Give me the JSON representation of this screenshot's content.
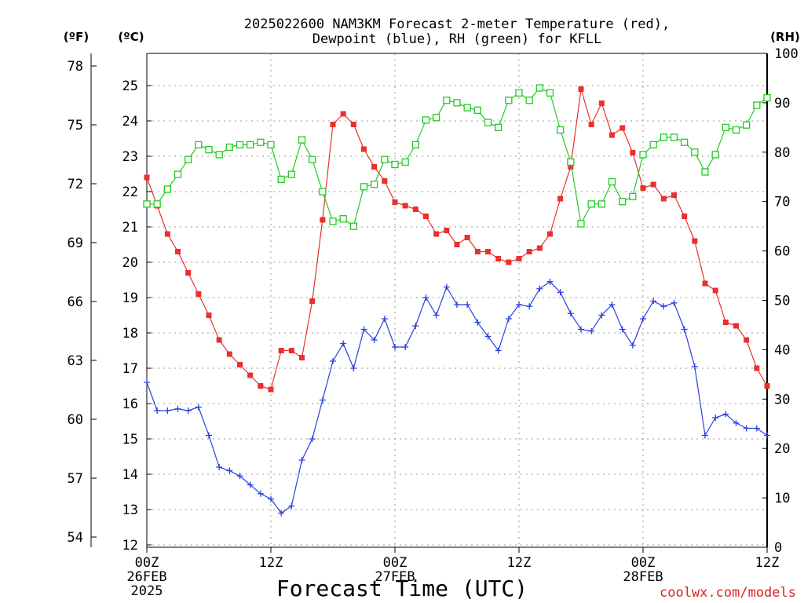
{
  "chart_data": {
    "type": "line",
    "title_line1": "2025022600 NAM3KM Forecast 2-meter Temperature (red),",
    "title_line2": "Dewpoint (blue), RH (green) for KFLL",
    "xlabel": "Forecast Time (UTC)",
    "credit": "coolwx.com/models",
    "left_axis_f_label": "(ºF)",
    "left_axis_c_label": "(ºC)",
    "right_axis_label": "(RH)",
    "x_hours_range": [
      0,
      60
    ],
    "x_ticks": [
      {
        "hour": 0,
        "label": "00Z",
        "sub1": "26FEB",
        "sub2": "2025"
      },
      {
        "hour": 12,
        "label": "12Z",
        "sub1": "",
        "sub2": ""
      },
      {
        "hour": 24,
        "label": "00Z",
        "sub1": "27FEB",
        "sub2": ""
      },
      {
        "hour": 36,
        "label": "12Z",
        "sub1": "",
        "sub2": ""
      },
      {
        "hour": 48,
        "label": "00Z",
        "sub1": "28FEB",
        "sub2": ""
      },
      {
        "hour": 60,
        "label": "12Z",
        "sub1": "",
        "sub2": ""
      }
    ],
    "y_celsius_range": [
      12,
      25.85
    ],
    "y_celsius_ticks": [
      "12",
      "13",
      "14",
      "15",
      "16",
      "17",
      "18",
      "19",
      "20",
      "21",
      "22",
      "23",
      "24",
      "25"
    ],
    "y_fahrenheit_ticks": [
      "54",
      "57",
      "60",
      "63",
      "66",
      "69",
      "72",
      "75",
      "78"
    ],
    "y_rh_range": [
      0,
      100
    ],
    "y_rh_ticks": [
      "0",
      "10",
      "20",
      "30",
      "40",
      "50",
      "60",
      "70",
      "80",
      "90",
      "100"
    ],
    "grid": true,
    "series": [
      {
        "name": "Temperature",
        "color": "#e8302e",
        "marker": "filled-square",
        "axis": "celsius",
        "values": [
          22.4,
          21.6,
          20.8,
          20.3,
          19.7,
          19.1,
          18.5,
          17.8,
          17.4,
          17.1,
          16.8,
          16.5,
          16.4,
          17.5,
          17.5,
          17.3,
          18.9,
          21.2,
          23.9,
          24.2,
          23.9,
          23.2,
          22.7,
          22.3,
          21.7,
          21.6,
          21.5,
          21.3,
          20.8,
          20.9,
          20.5,
          20.7,
          20.3,
          20.3,
          20.1,
          20.0,
          20.1,
          20.3,
          20.4,
          20.8,
          21.8,
          22.7,
          24.9,
          23.9,
          24.5,
          23.6,
          23.8,
          23.1,
          22.1,
          22.2,
          21.8,
          21.9,
          21.3,
          20.6,
          19.4,
          19.2,
          18.3,
          18.2,
          17.8,
          17.0,
          16.5
        ]
      },
      {
        "name": "Dewpoint",
        "color": "#2b3fe0",
        "marker": "plus",
        "axis": "celsius",
        "values": [
          16.6,
          15.8,
          15.8,
          15.85,
          15.8,
          15.9,
          15.1,
          14.2,
          14.1,
          13.95,
          13.7,
          13.45,
          13.3,
          12.9,
          13.1,
          14.4,
          15.0,
          16.1,
          17.2,
          17.7,
          17.0,
          18.1,
          17.8,
          18.4,
          17.6,
          17.6,
          18.2,
          19.0,
          18.5,
          19.3,
          18.8,
          18.8,
          18.3,
          17.9,
          17.5,
          18.4,
          18.8,
          18.75,
          19.25,
          19.45,
          19.15,
          18.55,
          18.1,
          18.05,
          18.5,
          18.8,
          18.1,
          17.65,
          18.4,
          18.9,
          18.75,
          18.85,
          18.1,
          17.05,
          15.1,
          15.6,
          15.7,
          15.45,
          15.3,
          15.3,
          15.1
        ]
      },
      {
        "name": "RH",
        "color": "#22cc22",
        "marker": "open-square",
        "axis": "rh",
        "values": [
          69.5,
          69.5,
          72.5,
          75.5,
          78.5,
          81.5,
          80.5,
          79.5,
          81,
          81.5,
          81.5,
          82,
          81.5,
          74.5,
          75.5,
          82.5,
          78.5,
          72,
          66,
          66.5,
          65,
          73,
          73.5,
          78.5,
          77.5,
          78,
          81.5,
          86.5,
          87,
          90.5,
          90,
          89,
          88.5,
          86,
          85,
          90.5,
          92,
          90.5,
          93,
          92,
          84.5,
          78,
          65.5,
          69.5,
          69.5,
          74,
          70,
          71,
          79.5,
          81.5,
          83,
          83,
          82,
          80,
          76,
          79.5,
          85,
          84.5,
          85.5,
          89.5,
          91
        ]
      }
    ]
  }
}
